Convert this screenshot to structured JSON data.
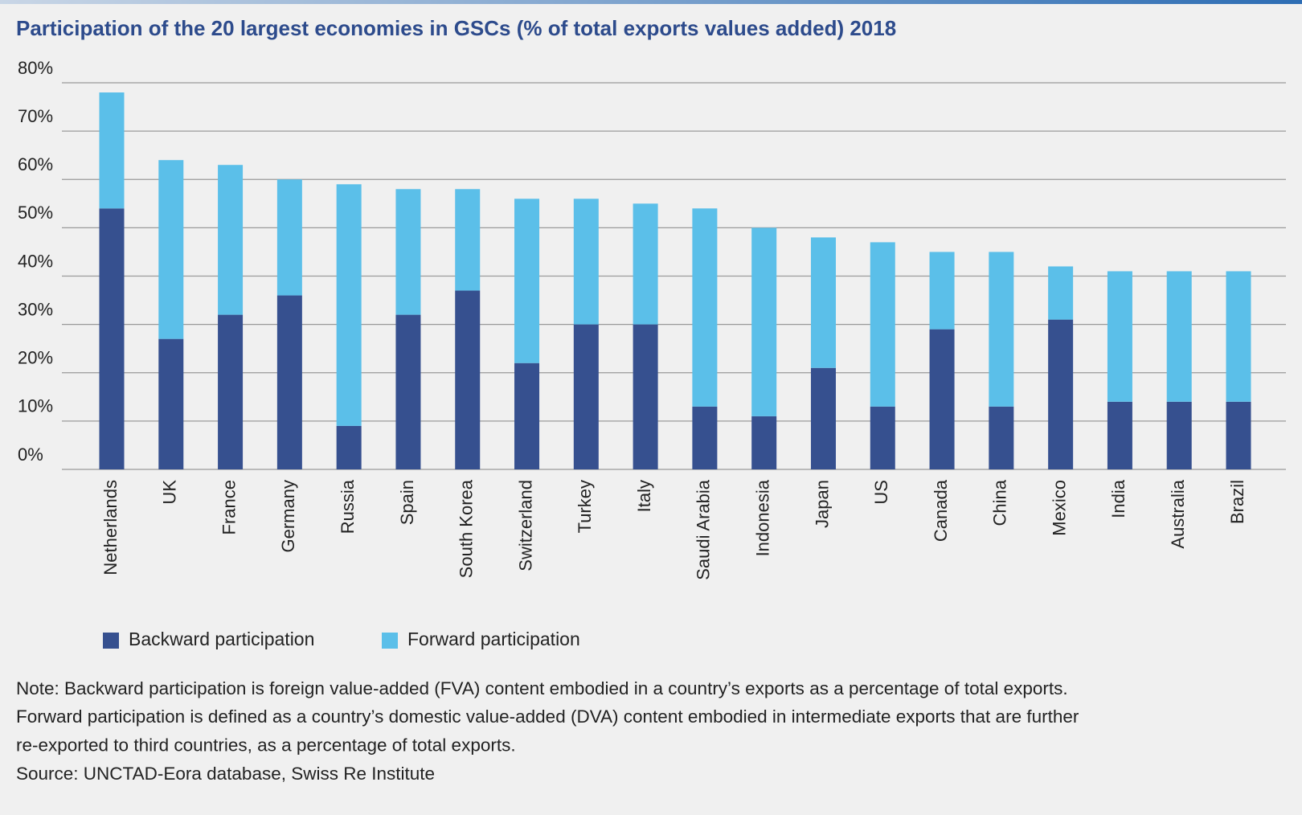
{
  "chart_data": {
    "type": "stacked_bar",
    "title": "Participation of the 20 largest economies in GSCs (% of total exports values added) 2018",
    "categories": [
      "Netherlands",
      "UK",
      "France",
      "Germany",
      "Russia",
      "Spain",
      "South Korea",
      "Switzerland",
      "Turkey",
      "Italy",
      "Saudi Arabia",
      "Indonesia",
      "Japan",
      "US",
      "Canada",
      "China",
      "Mexico",
      "India",
      "Australia",
      "Brazil"
    ],
    "series": [
      {
        "name": "Backward participation",
        "color": "#36508f",
        "values": [
          54,
          27,
          32,
          36,
          9,
          32,
          37,
          22,
          30,
          30,
          13,
          11,
          21,
          13,
          29,
          13,
          31,
          14,
          14,
          14
        ]
      },
      {
        "name": "Forward participation",
        "color": "#5bbfe9",
        "values": [
          24,
          37,
          31,
          24,
          50,
          26,
          21,
          34,
          26,
          25,
          41,
          39,
          27,
          34,
          16,
          32,
          11,
          27,
          27,
          27
        ]
      }
    ],
    "ylim": [
      0,
      80
    ],
    "yticks": [
      {
        "value": 0,
        "label": "0%"
      },
      {
        "value": 10,
        "label": "10%"
      },
      {
        "value": 20,
        "label": "20%"
      },
      {
        "value": 30,
        "label": "30%"
      },
      {
        "value": 40,
        "label": "40%"
      },
      {
        "value": 50,
        "label": "50%"
      },
      {
        "value": 60,
        "label": "60%"
      },
      {
        "value": 70,
        "label": "70%"
      },
      {
        "value": 80,
        "label": "80%"
      }
    ],
    "grid": true,
    "notes": [
      "Note: Backward participation is foreign value-added (FVA) content embodied in a country’s exports as a percentage of total exports.",
      "Forward participation is defined as a country’s domestic value-added (DVA) content embodied in intermediate exports that are further",
      "re-exported to third countries, as a percentage of total exports.",
      "Source: UNCTAD-Eora database, Swiss Re Institute"
    ]
  }
}
